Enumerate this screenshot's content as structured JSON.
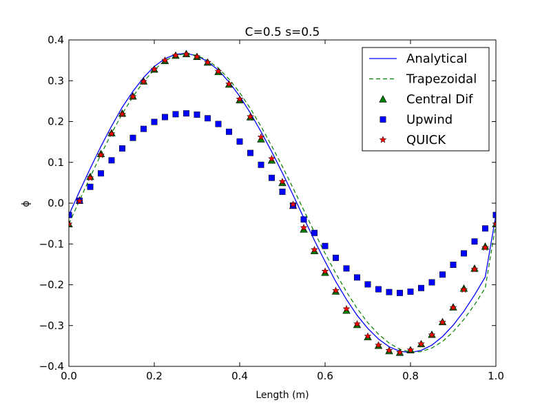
{
  "chart_data": {
    "type": "line",
    "title": "C=0.5 s=0.5",
    "xlabel": "Length (m)",
    "ylabel": "ϕ",
    "xlim": [
      0.0,
      1.0
    ],
    "ylim": [
      -0.4,
      0.4
    ],
    "x_ticks": [
      "0.0",
      "0.2",
      "0.4",
      "0.6",
      "0.8",
      "1.0"
    ],
    "y_ticks": [
      "−0.4",
      "−0.3",
      "−0.2",
      "−0.1",
      "0.0",
      "0.1",
      "0.2",
      "0.3",
      "0.4"
    ],
    "legend_position": "top-right",
    "grid": false,
    "x_markers": [
      0.0,
      0.025,
      0.05,
      0.075,
      0.1,
      0.125,
      0.15,
      0.175,
      0.2,
      0.225,
      0.25,
      0.275,
      0.3,
      0.325,
      0.35,
      0.375,
      0.4,
      0.425,
      0.45,
      0.475,
      0.5,
      0.525,
      0.55,
      0.575,
      0.6,
      0.625,
      0.65,
      0.675,
      0.7,
      0.725,
      0.75,
      0.775,
      0.8,
      0.825,
      0.85,
      0.875,
      0.9,
      0.925,
      0.95,
      0.975,
      1.0
    ],
    "series": [
      {
        "name": "Analytical",
        "style": "line",
        "color": "#0000ff",
        "x": [
          0.0,
          0.025,
          0.05,
          0.075,
          0.1,
          0.125,
          0.15,
          0.175,
          0.2,
          0.225,
          0.25,
          0.275,
          0.3,
          0.325,
          0.35,
          0.375,
          0.4,
          0.425,
          0.45,
          0.475,
          0.5,
          0.525,
          0.55,
          0.575,
          0.6,
          0.625,
          0.65,
          0.675,
          0.7,
          0.725,
          0.75,
          0.775,
          0.8,
          0.825,
          0.85,
          0.875,
          0.9,
          0.925,
          0.95,
          0.975,
          1.0
        ],
        "values": [
          -0.029,
          0.029,
          0.085,
          0.139,
          0.189,
          0.235,
          0.274,
          0.308,
          0.335,
          0.354,
          0.365,
          0.367,
          0.361,
          0.347,
          0.326,
          0.297,
          0.262,
          0.221,
          0.175,
          0.126,
          0.074,
          0.02,
          -0.036,
          -0.091,
          -0.143,
          -0.192,
          -0.236,
          -0.275,
          -0.307,
          -0.333,
          -0.352,
          -0.363,
          -0.366,
          -0.361,
          -0.348,
          -0.327,
          -0.299,
          -0.265,
          -0.225,
          -0.181,
          -0.029
        ]
      },
      {
        "name": "Trapezoidal",
        "style": "dashed",
        "color": "#008000",
        "x": [
          0.0,
          0.025,
          0.05,
          0.075,
          0.1,
          0.125,
          0.15,
          0.175,
          0.2,
          0.225,
          0.25,
          0.275,
          0.3,
          0.325,
          0.35,
          0.375,
          0.4,
          0.425,
          0.45,
          0.475,
          0.5,
          0.525,
          0.55,
          0.575,
          0.6,
          0.625,
          0.65,
          0.675,
          0.7,
          0.725,
          0.75,
          0.775,
          0.8,
          0.825,
          0.85,
          0.875,
          0.9,
          0.925,
          0.95,
          0.975,
          1.0
        ],
        "values": [
          -0.051,
          0.007,
          0.064,
          0.119,
          0.171,
          0.219,
          0.261,
          0.298,
          0.327,
          0.349,
          0.362,
          0.366,
          0.362,
          0.35,
          0.331,
          0.304,
          0.271,
          0.232,
          0.188,
          0.14,
          0.09,
          0.037,
          -0.017,
          -0.071,
          -0.123,
          -0.172,
          -0.217,
          -0.258,
          -0.293,
          -0.321,
          -0.343,
          -0.358,
          -0.365,
          -0.364,
          -0.355,
          -0.339,
          -0.315,
          -0.285,
          -0.249,
          -0.208,
          -0.051
        ]
      },
      {
        "name": "Central Dif",
        "style": "triangle",
        "color": "#008000",
        "values": [
          -0.051,
          0.007,
          0.065,
          0.121,
          0.172,
          0.22,
          0.262,
          0.299,
          0.328,
          0.349,
          0.362,
          0.366,
          0.359,
          0.345,
          0.322,
          0.291,
          0.253,
          0.211,
          0.157,
          0.105,
          0.05,
          -0.006,
          -0.064,
          -0.117,
          -0.17,
          -0.216,
          -0.263,
          -0.298,
          -0.328,
          -0.349,
          -0.362,
          -0.366,
          -0.36,
          -0.345,
          -0.322,
          -0.291,
          -0.255,
          -0.209,
          -0.16,
          -0.106,
          -0.051
        ]
      },
      {
        "name": "Upwind",
        "style": "square",
        "color": "#0000ff",
        "values": [
          -0.029,
          0.006,
          0.04,
          0.073,
          0.105,
          0.134,
          0.16,
          0.182,
          0.199,
          0.211,
          0.218,
          0.22,
          0.217,
          0.208,
          0.194,
          0.175,
          0.151,
          0.123,
          0.094,
          0.062,
          0.028,
          -0.006,
          -0.04,
          -0.073,
          -0.105,
          -0.134,
          -0.16,
          -0.182,
          -0.199,
          -0.211,
          -0.218,
          -0.22,
          -0.217,
          -0.208,
          -0.194,
          -0.175,
          -0.151,
          -0.123,
          -0.094,
          -0.062,
          -0.029
        ]
      },
      {
        "name": "QUICK",
        "style": "star",
        "color": "#ff0000",
        "values": [
          -0.051,
          0.005,
          0.062,
          0.118,
          0.17,
          0.218,
          0.261,
          0.298,
          0.328,
          0.35,
          0.362,
          0.365,
          0.359,
          0.345,
          0.323,
          0.292,
          0.255,
          0.212,
          0.162,
          0.109,
          0.053,
          -0.003,
          -0.06,
          -0.114,
          -0.167,
          -0.214,
          -0.259,
          -0.296,
          -0.326,
          -0.348,
          -0.361,
          -0.366,
          -0.36,
          -0.345,
          -0.323,
          -0.292,
          -0.256,
          -0.212,
          -0.162,
          -0.109,
          -0.051
        ]
      }
    ]
  }
}
